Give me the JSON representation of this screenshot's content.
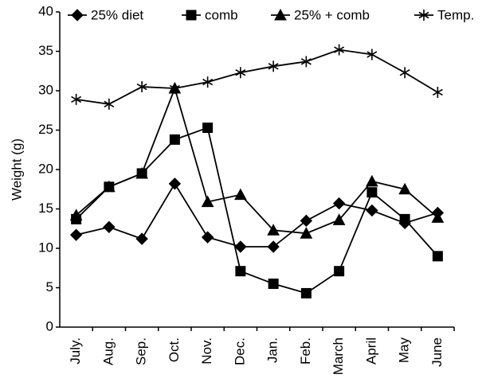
{
  "chart_data": {
    "type": "line",
    "y_label": "Weight (g)",
    "categories": [
      "July.",
      "Aug.",
      "Sep.",
      "Oct.",
      "Nov.",
      "Dec.",
      "Jan.",
      "Feb.",
      "March",
      "April",
      "May",
      "June"
    ],
    "series": [
      {
        "name": "25% diet",
        "color": "#000000",
        "marker": "diamond",
        "values": [
          11.7,
          12.7,
          11.2,
          18.2,
          11.4,
          10.2,
          10.2,
          13.5,
          15.7,
          14.8,
          13.2,
          14.5
        ]
      },
      {
        "name": "comb",
        "color": "#000000",
        "marker": "square",
        "values": [
          13.7,
          17.8,
          19.5,
          23.8,
          25.3,
          7.1,
          5.5,
          4.3,
          7.1,
          17.1,
          13.7,
          9.0
        ]
      },
      {
        "name": "25% + comb",
        "color": "#000000",
        "marker": "triangle",
        "values": [
          14.2,
          17.8,
          19.5,
          30.3,
          15.9,
          16.8,
          12.3,
          11.9,
          13.6,
          18.5,
          17.5,
          13.9
        ]
      },
      {
        "name": "Temp.",
        "color": "#000000",
        "marker": "star",
        "values": [
          28.9,
          28.3,
          30.5,
          30.3,
          31.1,
          32.3,
          33.1,
          33.7,
          35.2,
          34.6,
          32.3,
          29.8
        ]
      }
    ],
    "ylim": [
      0,
      40
    ],
    "yticks": [
      0,
      5,
      10,
      15,
      20,
      25,
      30,
      35,
      40
    ],
    "grid": false,
    "legend": "top"
  }
}
